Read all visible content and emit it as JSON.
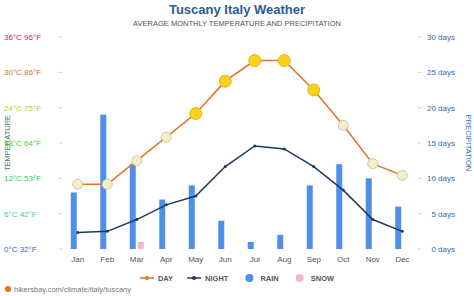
{
  "chart_data": {
    "type": "line",
    "title": "Tuscany Italy Weather",
    "subtitle": "AVERAGE MONTHLY TEMPERATURE AND PRECIPITATION",
    "y_label": "TEMPERATURE",
    "y2_label": "PRECIPITATION",
    "annotations": [
      "hikersbay.com/climate/italy/tuscany"
    ],
    "categories": [
      "Jan",
      "Feb",
      "Mar",
      "Apr",
      "May",
      "Jun",
      "Jul",
      "Aug",
      "Sep",
      "Oct",
      "Nov",
      "Dec"
    ],
    "series": [
      {
        "name": "DAY",
        "type": "line",
        "color": "#e8711c",
        "marker": "circle",
        "values": [
          11,
          11,
          15,
          19,
          23,
          28.5,
          32,
          32,
          27,
          21,
          14.5,
          12.5
        ]
      },
      {
        "name": "NIGHT",
        "type": "line",
        "color": "#1c3a5e",
        "values": [
          2.8,
          3,
          5,
          7.5,
          9,
          14,
          17.5,
          17,
          14,
          10,
          5,
          3
        ]
      },
      {
        "name": "RAIN",
        "type": "bar",
        "axis": "y2",
        "color": "#4d90e8",
        "values": [
          8,
          19,
          12,
          7,
          9,
          4,
          1,
          2,
          9,
          12,
          10,
          6
        ]
      },
      {
        "name": "SNOW",
        "type": "bar",
        "axis": "y2",
        "color": "#f5b8c4",
        "values": [
          0,
          0,
          1,
          0,
          0,
          0,
          0,
          0,
          0,
          0,
          0,
          0
        ]
      }
    ],
    "ylim": [
      0,
      36
    ],
    "yticks": [
      {
        "value": 0,
        "label": "0°C 32°F"
      },
      {
        "value": 6,
        "label": "6°C 42°F"
      },
      {
        "value": 12,
        "label": "12°C 53°F"
      },
      {
        "value": 18,
        "label": "18°C 64°F"
      },
      {
        "value": 24,
        "label": "24°C 75°F"
      },
      {
        "value": 30,
        "label": "30°C 86°F"
      },
      {
        "value": 36,
        "label": "36°C 96°F"
      }
    ],
    "y2lim": [
      0,
      30
    ],
    "y2ticks": [
      {
        "value": 0,
        "label": "0 days"
      },
      {
        "value": 5,
        "label": "5 days"
      },
      {
        "value": 10,
        "label": "10 days"
      },
      {
        "value": 15,
        "label": "15 days"
      },
      {
        "value": 20,
        "label": "20 days"
      },
      {
        "value": 25,
        "label": "25 days"
      },
      {
        "value": 30,
        "label": "30 days"
      }
    ],
    "grid": false,
    "legend": "bottom"
  }
}
